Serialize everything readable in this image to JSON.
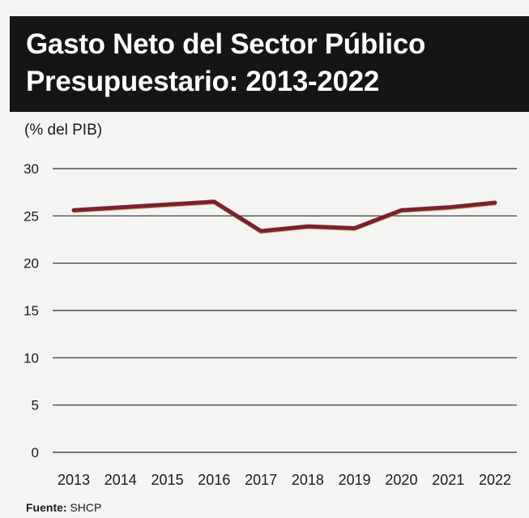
{
  "header": {
    "title_line1": "Gasto Neto del Sector Público",
    "title_line2": "Presupuestario: 2013-2022"
  },
  "unit_label": "(% del PIB)",
  "source": {
    "label": "Fuente:",
    "value": "SHCP"
  },
  "colors": {
    "header_bg": "#151515",
    "line": "#7a2131",
    "line_shadow": "#b59a3a",
    "grid": "#2a2a2a"
  },
  "chart_data": {
    "type": "line",
    "title": "Gasto Neto del Sector Público Presupuestario: 2013-2022",
    "ylabel": "(% del PIB)",
    "x": [
      "2013",
      "2014",
      "2015",
      "2016",
      "2017",
      "2018",
      "2019",
      "2020",
      "2021",
      "2022"
    ],
    "series": [
      {
        "values": [
          25.6,
          25.9,
          26.2,
          26.5,
          23.4,
          23.9,
          23.7,
          25.6,
          25.9,
          26.4
        ]
      }
    ],
    "yticks": [
      0,
      5,
      10,
      15,
      20,
      25,
      30
    ],
    "ylim": [
      0,
      30
    ],
    "grid": "horizontal",
    "legend": "none"
  }
}
